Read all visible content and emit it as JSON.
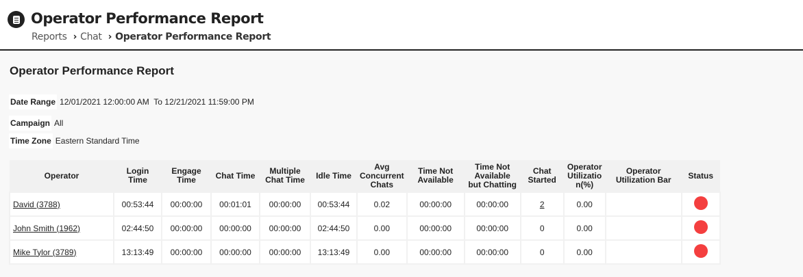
{
  "header": {
    "title": "Operator Performance Report",
    "icon": "clipboard-icon",
    "breadcrumb": [
      "Reports",
      "Chat",
      "Operator Performance Report"
    ]
  },
  "report": {
    "title": "Operator Performance Report",
    "date_range": {
      "label": "Date Range",
      "value": "12/01/2021 12:00:00 AM  To 12/21/2021 11:59:00 PM"
    },
    "campaign": {
      "label": "Campaign",
      "value": "All"
    },
    "time_zone": {
      "label": "Time Zone",
      "value": "Eastern Standard Time"
    }
  },
  "table": {
    "columns": [
      "Operator",
      "Login Time",
      "Engage Time",
      "Chat Time",
      "Multiple Chat Time",
      "Idle Time",
      "Avg Concurrent Chats",
      "Time Not Available",
      "Time Not Available but Chatting",
      "Chat Started",
      "Operator Utilizatio n(%)",
      "Operator Utilization Bar",
      "Status"
    ],
    "rows": [
      {
        "operator": "David (3788)",
        "login": "00:53:44",
        "engage": "00:00:00",
        "chat": "00:01:01",
        "multiple": "00:00:00",
        "idle": "00:53:44",
        "avg": "0.02",
        "tna": "00:00:00",
        "tnac": "00:00:00",
        "started": "2",
        "util": "0.00",
        "status": "red"
      },
      {
        "operator": "John Smith (1962)",
        "login": "02:44:50",
        "engage": "00:00:00",
        "chat": "00:00:00",
        "multiple": "00:00:00",
        "idle": "02:44:50",
        "avg": "0.00",
        "tna": "00:00:00",
        "tnac": "00:00:00",
        "started": "0",
        "util": "0.00",
        "status": "red"
      },
      {
        "operator": "Mike Tylor (3789)",
        "login": "13:13:49",
        "engage": "00:00:00",
        "chat": "00:00:00",
        "multiple": "00:00:00",
        "idle": "13:13:49",
        "avg": "0.00",
        "tna": "00:00:00",
        "tnac": "00:00:00",
        "started": "0",
        "util": "0.00",
        "status": "red"
      }
    ]
  },
  "colors": {
    "status_red": "#f43f3f"
  }
}
